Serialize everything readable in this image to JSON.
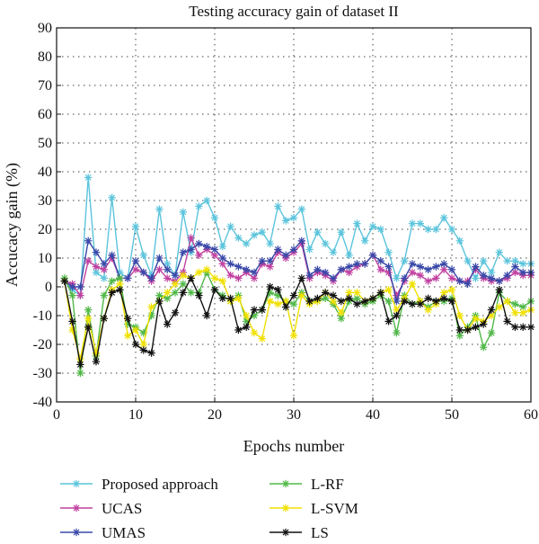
{
  "chart_data": {
    "type": "line",
    "title": "Testing accuracy gain of dataset II",
    "xlabel": "Epochs number",
    "ylabel": "Accucacy gain (%)",
    "xlim": [
      0,
      60
    ],
    "ylim": [
      -40,
      90
    ],
    "x_ticks": [
      0,
      10,
      20,
      30,
      40,
      50,
      60
    ],
    "y_ticks": [
      -40,
      -30,
      -20,
      -10,
      0,
      10,
      20,
      30,
      40,
      50,
      60,
      70,
      80,
      90
    ],
    "grid": "dotted",
    "legend_position": "bottom",
    "x": [
      1,
      2,
      3,
      4,
      5,
      6,
      7,
      8,
      9,
      10,
      11,
      12,
      13,
      14,
      15,
      16,
      17,
      18,
      19,
      20,
      21,
      22,
      23,
      24,
      25,
      26,
      27,
      28,
      29,
      30,
      31,
      32,
      33,
      34,
      35,
      36,
      37,
      38,
      39,
      40,
      41,
      42,
      43,
      44,
      45,
      46,
      47,
      48,
      49,
      50,
      51,
      52,
      53,
      54,
      55,
      56,
      57,
      58,
      59,
      60
    ],
    "series": [
      {
        "name": "Proposed approach",
        "color": "#5bc4dc",
        "values": [
          2,
          -1,
          -3,
          38,
          5,
          3,
          31,
          5,
          3,
          21,
          11,
          4,
          27,
          8,
          4,
          26,
          12,
          28,
          30,
          24,
          14,
          21,
          17,
          15,
          18,
          19,
          15,
          28,
          23,
          24,
          27,
          13,
          19,
          15,
          12,
          19,
          11,
          22,
          16,
          21,
          20,
          12,
          3,
          9,
          22,
          22,
          20,
          20,
          24,
          20,
          16,
          9,
          3,
          9,
          5,
          12,
          9,
          9,
          8,
          8
        ]
      },
      {
        "name": "UCAS",
        "color": "#c040a0",
        "values": [
          2,
          1,
          -3,
          9,
          7,
          6,
          10,
          3,
          3,
          6,
          5,
          2,
          6,
          3,
          2,
          5,
          17,
          11,
          13,
          11,
          8,
          4,
          3,
          5,
          3,
          8,
          7,
          12,
          10,
          12,
          15,
          3,
          5,
          4,
          2,
          6,
          5,
          7,
          8,
          11,
          6,
          5,
          -3,
          2,
          5,
          4,
          2,
          3,
          6,
          3,
          2,
          2,
          6,
          3,
          2,
          2,
          3,
          5,
          4,
          4
        ]
      },
      {
        "name": "UMAS",
        "color": "#3848a8",
        "values": [
          2,
          0,
          0,
          16,
          12,
          8,
          11,
          3,
          3,
          9,
          5,
          3,
          10,
          6,
          4,
          12,
          13,
          15,
          14,
          13,
          10,
          8,
          7,
          6,
          5,
          9,
          9,
          13,
          11,
          13,
          16,
          4,
          6,
          5,
          3,
          6,
          7,
          8,
          8,
          11,
          9,
          7,
          -5,
          3,
          8,
          7,
          6,
          7,
          8,
          6,
          2,
          1,
          7,
          4,
          3,
          2,
          4,
          7,
          5,
          5
        ]
      },
      {
        "name": "L-RF",
        "color": "#50b848",
        "values": [
          3,
          -3,
          -30,
          -8,
          -24,
          -3,
          2,
          3,
          -13,
          -14,
          -16,
          -10,
          -3,
          -4,
          -2,
          1,
          -2,
          -2,
          5,
          -1,
          -3,
          -5,
          -3,
          -12,
          -10,
          -8,
          -2,
          -3,
          -5,
          -6,
          -2,
          -5,
          -5,
          -4,
          -6,
          -11,
          -5,
          -4,
          -6,
          -5,
          -3,
          -5,
          -16,
          -3,
          -6,
          -5,
          -7,
          -5,
          -5,
          -4,
          -17,
          -14,
          -10,
          -21,
          -16,
          -2,
          -5,
          -6,
          -7,
          -5
        ]
      },
      {
        "name": "L-SVM",
        "color": "#f0e000",
        "values": [
          2,
          -15,
          -25,
          -11,
          -23,
          -11,
          -1,
          1,
          -17,
          -15,
          -20,
          -7,
          -5,
          -2,
          1,
          4,
          3,
          5,
          6,
          3,
          2,
          -5,
          -4,
          -10,
          -16,
          -18,
          -5,
          -6,
          -5,
          -17,
          -3,
          -6,
          -5,
          -2,
          -5,
          -9,
          -2,
          -2,
          -5,
          -4,
          -2,
          -1,
          -8,
          -4,
          1,
          -5,
          -8,
          -6,
          -2,
          -1,
          -10,
          -15,
          -11,
          -12,
          -10,
          -7,
          -5,
          -9,
          -9,
          -8
        ]
      },
      {
        "name": "LS",
        "color": "#111111",
        "values": [
          2,
          -12,
          -27,
          -14,
          -26,
          -11,
          -2,
          -1,
          -11,
          -20,
          -22,
          -23,
          -5,
          -13,
          -9,
          -2,
          3,
          -3,
          -10,
          -1,
          -4,
          -4,
          -15,
          -14,
          -8,
          -8,
          0,
          -1,
          -7,
          -3,
          3,
          -5,
          -4,
          -2,
          -3,
          -5,
          -4,
          -6,
          -5,
          -4,
          -2,
          -12,
          -10,
          -5,
          -6,
          -6,
          -4,
          -5,
          -4,
          -5,
          -15,
          -15,
          -14,
          -13,
          -8,
          -1,
          -12,
          -14,
          -14,
          -14
        ]
      }
    ]
  }
}
